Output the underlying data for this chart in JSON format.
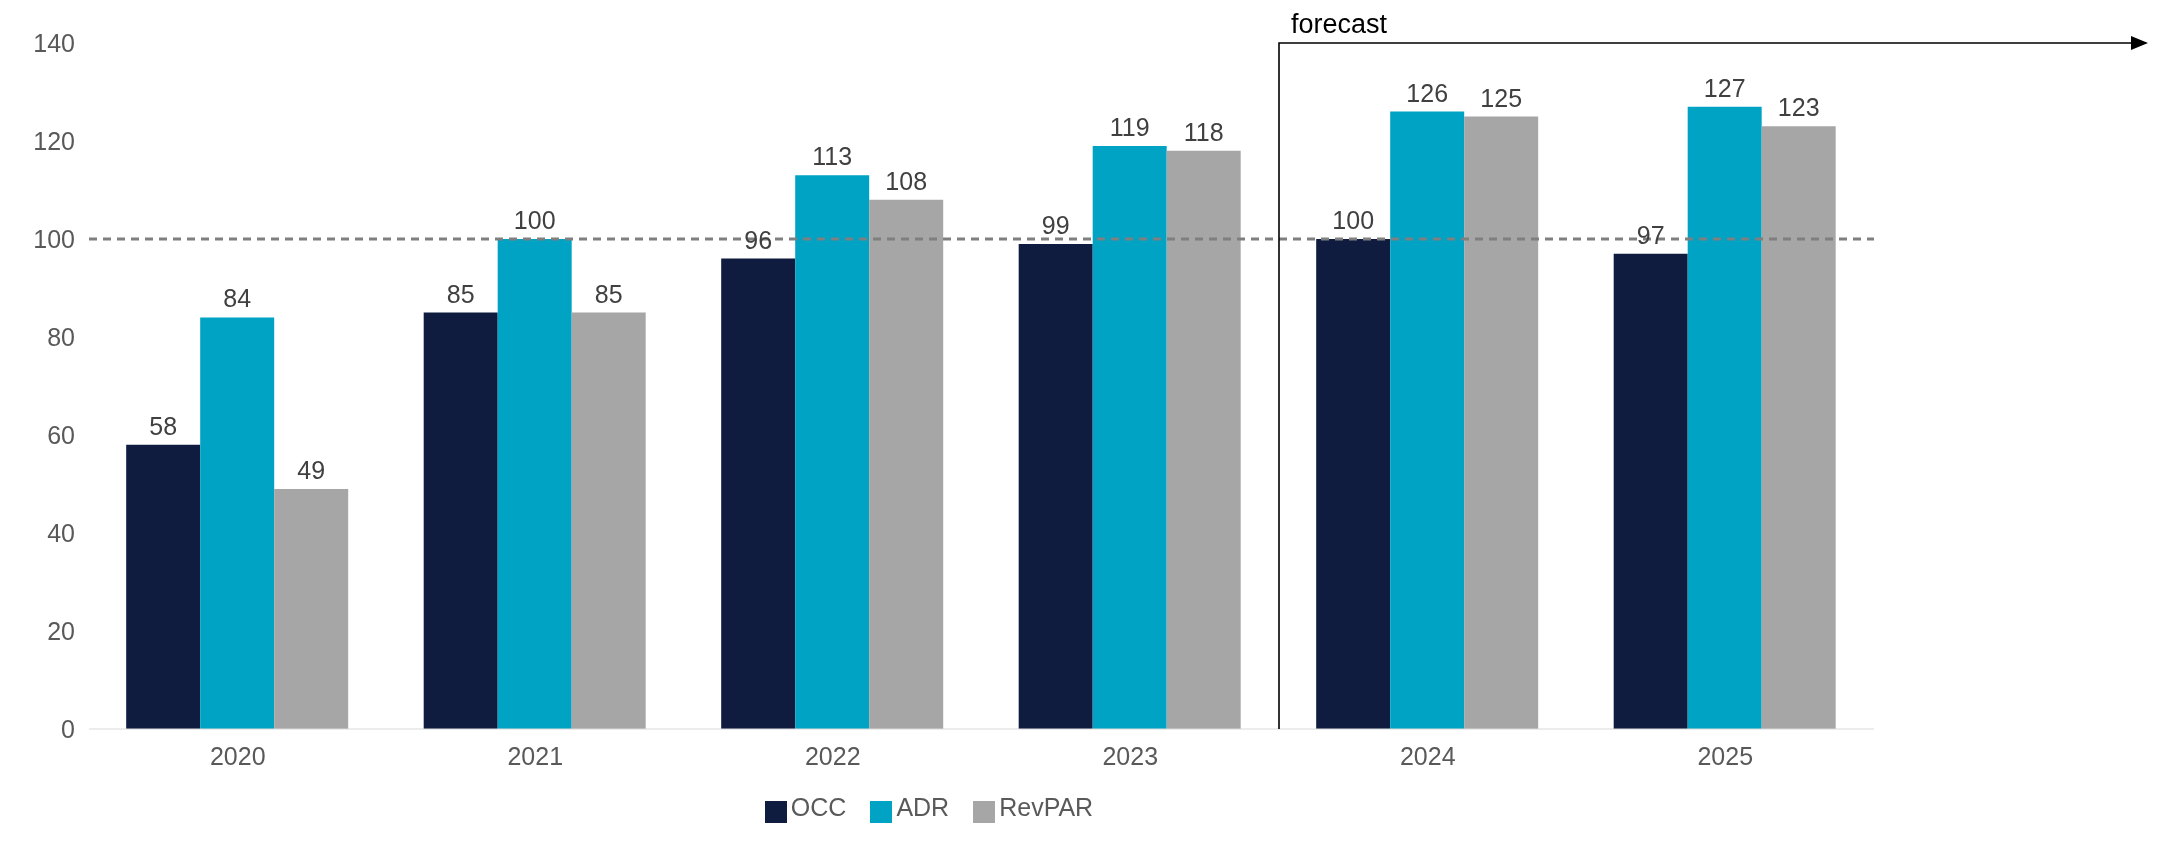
{
  "chart_data": {
    "type": "bar",
    "categories": [
      "2020",
      "2021",
      "2022",
      "2023",
      "2024",
      "2025"
    ],
    "series": [
      {
        "name": "OCC",
        "color": "#0f1c40",
        "values": [
          58,
          85,
          96,
          99,
          100,
          97
        ]
      },
      {
        "name": "ADR",
        "color": "#00a3c4",
        "values": [
          84,
          100,
          113,
          119,
          126,
          127
        ]
      },
      {
        "name": "RevPAR",
        "color": "#a6a6a6",
        "values": [
          49,
          85,
          108,
          118,
          125,
          123
        ]
      }
    ],
    "ylim": [
      0,
      140
    ],
    "yticks": [
      0,
      20,
      40,
      60,
      80,
      100,
      120,
      140
    ],
    "grid": false,
    "legend": "bottom",
    "data_labels": true,
    "ref_lines": [
      {
        "axis": "y",
        "value": 100,
        "color": "#7f7f7f",
        "line_style": "dashed"
      }
    ],
    "annotations": [
      "forecast"
    ]
  }
}
